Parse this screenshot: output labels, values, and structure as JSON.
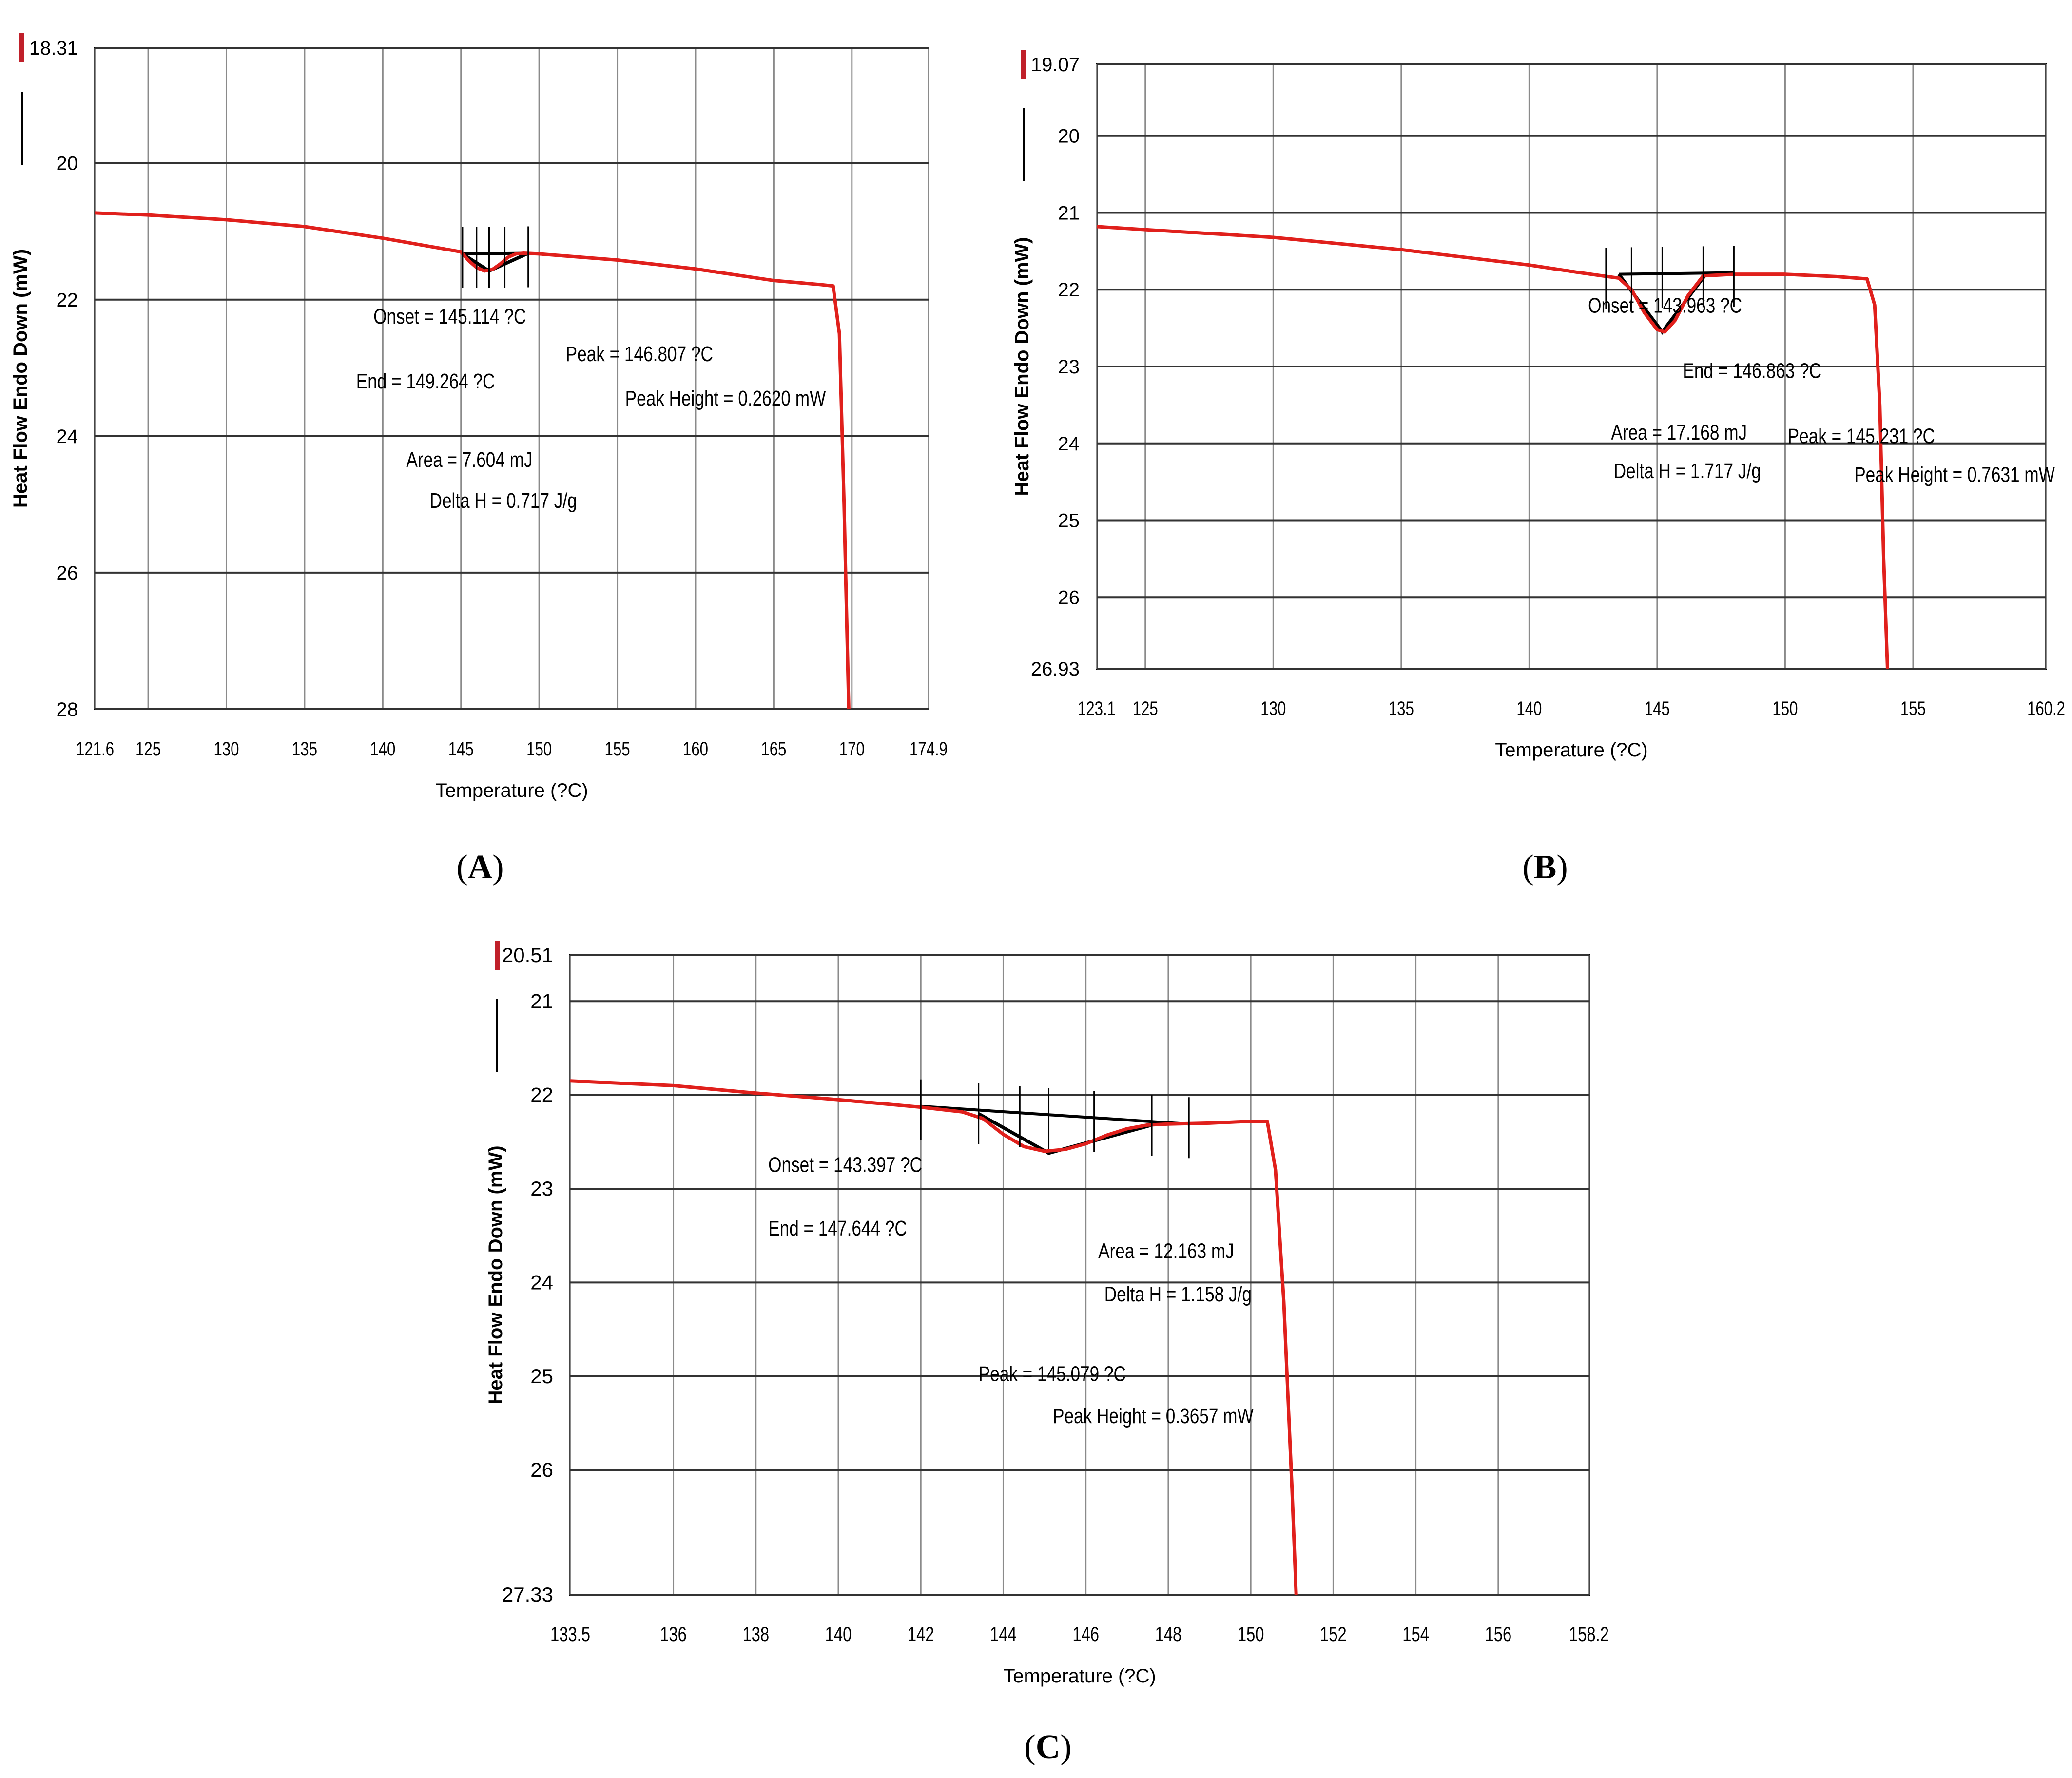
{
  "chart_data": [
    {
      "id": "A",
      "type": "line",
      "caption_label": "A",
      "xlabel": "Temperature (?C)",
      "ylabel": "Heat Flow Endo Down (mW)",
      "xlim": [
        121.6,
        174.9
      ],
      "ylim": [
        18.31,
        28
      ],
      "y_inverted": true,
      "x_ticks": [
        121.6,
        125,
        130,
        135,
        140,
        145,
        150,
        155,
        160,
        165,
        170,
        174.9
      ],
      "x_tick_labels": [
        "121.6",
        "125",
        "130",
        "135",
        "140",
        "145",
        "150",
        "155",
        "160",
        "165",
        "170",
        "174.9"
      ],
      "y_ticks": [
        18.31,
        20,
        22,
        24,
        26,
        28
      ],
      "y_tick_labels": [
        "18.31",
        "20",
        "22",
        "24",
        "26",
        "28"
      ],
      "series": [
        {
          "name": "Heat Flow",
          "color": "#e0201c",
          "x": [
            121.6,
            125,
            130,
            135,
            140,
            143,
            145,
            145.5,
            146,
            146.5,
            147,
            147.5,
            148,
            148.5,
            149,
            150,
            155,
            160,
            165,
            168,
            168.8,
            169.2,
            169.5,
            169.8
          ],
          "y": [
            20.73,
            20.76,
            20.83,
            20.93,
            21.1,
            21.22,
            21.3,
            21.43,
            21.53,
            21.58,
            21.56,
            21.48,
            21.38,
            21.33,
            21.32,
            21.33,
            21.42,
            21.55,
            21.72,
            21.78,
            21.8,
            22.5,
            25,
            28
          ]
        }
      ],
      "baseline": {
        "x": [
          145.1,
          149.3
        ],
        "y": [
          21.33,
          21.32
        ]
      },
      "peak_triangle": {
        "x": [
          145.1,
          146.8,
          149.3
        ],
        "y": [
          21.33,
          21.58,
          21.32
        ]
      },
      "markers_x": [
        145.1,
        146,
        146.8,
        147.8,
        149.3
      ],
      "annotations": [
        {
          "text": "Onset = 145.114 ?C",
          "x": 139.4,
          "y": 22.35
        },
        {
          "text": "End = 149.264 ?C",
          "x": 138.3,
          "y": 23.3
        },
        {
          "text": "Peak = 146.807 ?C",
          "x": 151.7,
          "y": 22.9
        },
        {
          "text": "Peak Height = 0.2620 mW",
          "x": 155.5,
          "y": 23.55
        },
        {
          "text": "Area = 7.604 mJ",
          "x": 141.5,
          "y": 24.45
        },
        {
          "text": "Delta H = 0.717 J/g",
          "x": 143,
          "y": 25.05
        }
      ]
    },
    {
      "id": "B",
      "type": "line",
      "caption_label": "B",
      "xlabel": "Temperature (?C)",
      "ylabel": "Heat Flow Endo Down (mW)",
      "xlim": [
        123.1,
        160.2
      ],
      "ylim": [
        19.07,
        26.93
      ],
      "y_inverted": true,
      "x_ticks": [
        123.1,
        125,
        130,
        135,
        140,
        145,
        150,
        155,
        160.2
      ],
      "x_tick_labels": [
        "123.1",
        "125",
        "130",
        "135",
        "140",
        "145",
        "150",
        "155",
        "160.2"
      ],
      "y_ticks": [
        19.07,
        20,
        21,
        22,
        23,
        24,
        25,
        26,
        26.93
      ],
      "y_tick_labels": [
        "19.07",
        "20",
        "21",
        "22",
        "23",
        "24",
        "25",
        "26",
        "26.93"
      ],
      "series": [
        {
          "name": "Heat Flow",
          "color": "#e0201c",
          "x": [
            123.1,
            125,
            130,
            135,
            140,
            142,
            143.5,
            144,
            144.5,
            145,
            145.3,
            145.7,
            146.2,
            146.8,
            148,
            150,
            152,
            153.2,
            153.5,
            153.7,
            153.85,
            154
          ],
          "y": [
            21.18,
            21.22,
            21.32,
            21.48,
            21.68,
            21.78,
            21.85,
            22,
            22.3,
            22.52,
            22.55,
            22.4,
            22.08,
            21.82,
            21.8,
            21.8,
            21.83,
            21.86,
            22.2,
            23.5,
            25.5,
            26.93
          ]
        }
      ],
      "baseline": {
        "x": [
          143.5,
          148
        ],
        "y": [
          21.8,
          21.78
        ]
      },
      "peak_triangle": {
        "x": [
          143.5,
          145.2,
          146.9
        ],
        "y": [
          21.8,
          22.55,
          21.8
        ]
      },
      "markers_x": [
        143,
        144,
        145.2,
        146.8,
        148
      ],
      "annotations": [
        {
          "text": "Onset = 143.963 ?C",
          "x": 142.3,
          "y": 22.3
        },
        {
          "text": "End = 146.863 ?C",
          "x": 146,
          "y": 23.15
        },
        {
          "text": "Area = 17.168 mJ",
          "x": 143.2,
          "y": 23.95
        },
        {
          "text": "Delta H = 1.717 J/g",
          "x": 143.3,
          "y": 24.45
        },
        {
          "text": "Peak = 145.231 ?C",
          "x": 150.1,
          "y": 24.0
        },
        {
          "text": "Peak Height = 0.7631 mW",
          "x": 152.7,
          "y": 24.5
        }
      ]
    },
    {
      "id": "C",
      "type": "line",
      "caption_label": "C",
      "xlabel": "Temperature (?C)",
      "ylabel": "Heat Flow Endo Down (mW)",
      "xlim": [
        133.5,
        158.2
      ],
      "ylim": [
        20.51,
        27.33
      ],
      "y_inverted": true,
      "x_ticks": [
        133.5,
        136,
        138,
        140,
        142,
        144,
        146,
        148,
        150,
        152,
        154,
        156,
        158.2
      ],
      "x_tick_labels": [
        "133.5",
        "136",
        "138",
        "140",
        "142",
        "144",
        "146",
        "148",
        "150",
        "152",
        "154",
        "156",
        "158.2"
      ],
      "y_ticks": [
        20.51,
        21,
        22,
        23,
        24,
        25,
        26,
        27.33
      ],
      "y_tick_labels": [
        "20.51",
        "21",
        "22",
        "23",
        "24",
        "25",
        "26",
        "27.33"
      ],
      "series": [
        {
          "name": "Heat Flow",
          "color": "#e0201c",
          "x": [
            133.5,
            136,
            138,
            140,
            142,
            143,
            143.5,
            144,
            144.5,
            145,
            145.5,
            146,
            146.5,
            147,
            147.5,
            148,
            149,
            150,
            150.4,
            150.6,
            150.8,
            151,
            151.1
          ],
          "y": [
            21.85,
            21.9,
            21.98,
            22.05,
            22.13,
            22.18,
            22.25,
            22.42,
            22.55,
            22.6,
            22.58,
            22.52,
            22.43,
            22.36,
            22.32,
            22.31,
            22.3,
            22.28,
            22.28,
            22.8,
            24.2,
            26.2,
            27.33
          ]
        }
      ],
      "baseline": {
        "x": [
          142,
          148.5
        ],
        "y": [
          22.12,
          22.31
        ]
      },
      "peak_triangle": {
        "x": [
          143.4,
          145.1,
          147.6
        ],
        "y": [
          22.2,
          22.62,
          22.32
        ]
      },
      "markers_x": [
        142,
        143.4,
        144.4,
        145.1,
        146.2,
        147.6,
        148.5
      ],
      "annotations": [
        {
          "text": "Onset = 143.397 ?C",
          "x": 138.3,
          "y": 22.82
        },
        {
          "text": "End = 147.644 ?C",
          "x": 138.3,
          "y": 23.5
        },
        {
          "text": "Area = 12.163 mJ",
          "x": 146.3,
          "y": 23.74
        },
        {
          "text": "Delta H = 1.158 J/g",
          "x": 146.45,
          "y": 24.2
        },
        {
          "text": "Peak = 145.079 ?C",
          "x": 143.4,
          "y": 25.05
        },
        {
          "text": "Peak Height = 0.3657 mW",
          "x": 145.2,
          "y": 25.5
        }
      ]
    }
  ]
}
